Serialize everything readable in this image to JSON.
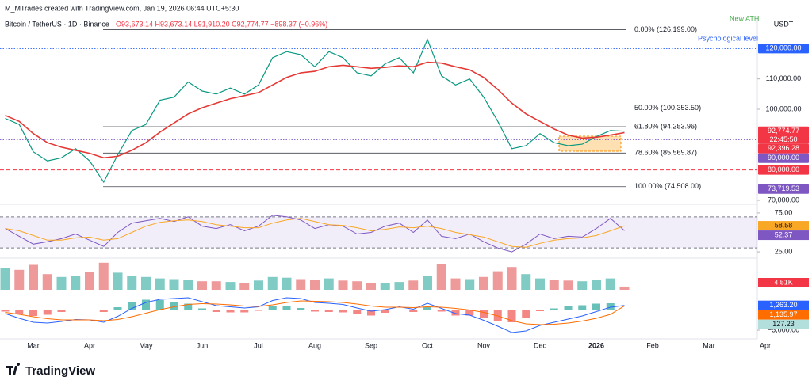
{
  "header": {
    "author_line": "M_MTrades created with TradingView.com, Jan 19, 2026 06:44 UTC+5:30",
    "symbol": "Bitcoin / TetherUS · 1D · Binance",
    "ohlc": "O93,673.14 H93,673.14 L91,910.20 C92,774.77 −898.37 (−0.96%)",
    "currency": "USDT"
  },
  "footer": {
    "brand": "TradingView"
  },
  "chart_data": {
    "type": "line",
    "categories": [
      null,
      null,
      "Mar",
      null,
      null,
      null,
      "Apr",
      null,
      null,
      null,
      "May",
      null,
      null,
      null,
      "Jun",
      null,
      null,
      null,
      "Jul",
      null,
      null,
      null,
      "Aug",
      null,
      null,
      null,
      "Sep",
      null,
      null,
      null,
      "Oct",
      null,
      null,
      null,
      "Nov",
      null,
      null,
      null,
      "Dec",
      null,
      null,
      null,
      "2026",
      null,
      null,
      null,
      "Feb",
      null,
      null,
      null,
      "Mar",
      null,
      null,
      null,
      "Apr"
    ],
    "series": [
      {
        "color": "#089981",
        "values": [
          97000,
          95000,
          86000,
          83000,
          84000,
          87000,
          83000,
          76000,
          85000,
          93000,
          95000,
          103000,
          104000,
          109000,
          106000,
          105000,
          107000,
          105000,
          108000,
          117000,
          119000,
          118000,
          114000,
          119000,
          117000,
          112000,
          111000,
          115000,
          117000,
          112000,
          123000,
          111000,
          108000,
          110000,
          104000,
          96000,
          87000,
          88000,
          92000,
          89000,
          88000,
          88500,
          91000,
          93000,
          92774.77,
          null,
          null,
          null,
          null,
          null,
          null,
          null,
          null,
          null,
          null
        ]
      },
      {
        "color": "#e53935",
        "values": [
          98000,
          96000,
          92000,
          89000,
          87500,
          86500,
          85500,
          84000,
          84500,
          86500,
          89000,
          92500,
          95500,
          98500,
          100500,
          102000,
          103500,
          104500,
          105500,
          108000,
          110500,
          112000,
          112500,
          114000,
          114500,
          114000,
          113500,
          113800,
          114300,
          114000,
          115500,
          115200,
          114000,
          113000,
          110500,
          106500,
          102000,
          98500,
          96000,
          93500,
          91500,
          90500,
          90800,
          91500,
          92300,
          null,
          null,
          null,
          null,
          null,
          null,
          null,
          null,
          null,
          null
        ]
      }
    ],
    "ylim": [
      70000,
      130000
    ],
    "yticks": [
      {
        "value": 70000,
        "label": "70,000.00"
      },
      {
        "value": 100000,
        "label": "100,000.00"
      },
      {
        "value": 110000,
        "label": "110,000.00"
      }
    ],
    "fib_levels": [
      {
        "value": 126199,
        "label": "0.00% (126,199.00)"
      },
      {
        "value": 100353.5,
        "label": "50.00% (100,353.50)"
      },
      {
        "value": 94253.96,
        "label": "61.80% (94,253.96)"
      },
      {
        "value": 85569.87,
        "label": "78.60% (85,569.87)"
      },
      {
        "value": 74508,
        "label": "100.00% (74,508.00)"
      }
    ],
    "annotations": [
      {
        "text": "New ATH",
        "color": "#4caf50"
      },
      {
        "text": "Psychological level",
        "color": "#2962ff"
      }
    ],
    "price_labels": [
      {
        "value": 120000,
        "label": "120,000.00",
        "color": "#2962ff",
        "line": "dotted"
      },
      {
        "value": 92774.77,
        "label": "92,774.77",
        "color": "#f23645",
        "countdown": "22:45:50"
      },
      {
        "value": 92396.28,
        "label": "92,396.28",
        "color": "#f23645"
      },
      {
        "value": 90000,
        "label": "90,000.00",
        "color": "#7e57c2",
        "line": "dotted"
      },
      {
        "value": 80000,
        "label": "80,000.00",
        "color": "#f23645",
        "line": "dashed"
      },
      {
        "value": 73719.53,
        "label": "73,719.53",
        "color": "#7e57c2"
      }
    ],
    "rsi": {
      "ylim": [
        20,
        80
      ],
      "yticks": [
        {
          "value": 75,
          "label": "75.00"
        },
        {
          "value": 25,
          "label": "25.00"
        }
      ],
      "band": [
        30,
        70
      ],
      "series": [
        {
          "color": "#7e57c2",
          "values": [
            55,
            45,
            35,
            38,
            42,
            48,
            40,
            32,
            50,
            62,
            65,
            68,
            64,
            70,
            58,
            55,
            60,
            52,
            58,
            72,
            70,
            66,
            55,
            60,
            58,
            48,
            50,
            58,
            62,
            50,
            66,
            45,
            42,
            48,
            38,
            30,
            25,
            35,
            48,
            42,
            45,
            44,
            55,
            68,
            52.37,
            null,
            null,
            null,
            null,
            null,
            null,
            null,
            null,
            null,
            null
          ],
          "last_label": "52.37"
        },
        {
          "color": "#f9a825",
          "values": [
            55,
            52,
            46,
            40,
            40,
            43,
            44,
            40,
            42,
            50,
            58,
            63,
            65,
            66,
            64,
            60,
            58,
            56,
            56,
            62,
            66,
            68,
            64,
            60,
            59,
            56,
            52,
            54,
            57,
            56,
            58,
            55,
            50,
            47,
            44,
            38,
            32,
            31,
            36,
            40,
            42,
            43,
            46,
            52,
            58.58,
            null,
            null,
            null,
            null,
            null,
            null,
            null,
            null,
            null,
            null
          ],
          "last_label": "58.58"
        }
      ]
    },
    "volume": {
      "ylim": [
        0,
        40000
      ],
      "values": [
        30000,
        28000,
        35000,
        22000,
        18000,
        20000,
        25000,
        38000,
        24000,
        20000,
        18000,
        16000,
        15000,
        14000,
        12000,
        12000,
        11000,
        10000,
        13000,
        18000,
        17000,
        15000,
        14000,
        16000,
        13000,
        12000,
        10000,
        9000,
        11000,
        13000,
        20000,
        36000,
        16000,
        15000,
        18000,
        26000,
        32000,
        22000,
        16000,
        14000,
        13000,
        12000,
        14000,
        16000,
        4510,
        null,
        null,
        null,
        null,
        null,
        null,
        null,
        null,
        null,
        null
      ],
      "last_label": "4.51K",
      "up_color": "#80cbc4",
      "down_color": "#ef9a9a"
    },
    "macd": {
      "ylim": [
        -6000,
        4000
      ],
      "yticks": [
        {
          "value": -5000,
          "label": "−5,000.00"
        }
      ],
      "series": [
        {
          "color": "#2962ff",
          "values": [
            -800,
            -2000,
            -3000,
            -3200,
            -2800,
            -2300,
            -2400,
            -3000,
            -1500,
            500,
            2000,
            2800,
            3000,
            3200,
            2200,
            1200,
            900,
            600,
            900,
            2500,
            3200,
            3000,
            2000,
            1800,
            1500,
            600,
            -200,
            200,
            900,
            300,
            1800,
            500,
            -800,
            -1200,
            -2500,
            -4000,
            -5600,
            -5200,
            -3800,
            -3000,
            -2200,
            -1400,
            -300,
            800,
            1263.2,
            null,
            null,
            null,
            null,
            null,
            null,
            null,
            null,
            null,
            null
          ],
          "last_label": "1,263.20"
        },
        {
          "color": "#ff6d00",
          "values": [
            -500,
            -1000,
            -1600,
            -2100,
            -2400,
            -2400,
            -2400,
            -2600,
            -2300,
            -1600,
            -700,
            200,
            900,
            1500,
            1700,
            1600,
            1400,
            1100,
            1000,
            1400,
            2000,
            2400,
            2300,
            2200,
            2000,
            1600,
            1100,
            800,
            800,
            700,
            900,
            800,
            500,
            100,
            -500,
            -1400,
            -2600,
            -3400,
            -3600,
            -3500,
            -3200,
            -2700,
            -2000,
            -1000,
            1135.97,
            null,
            null,
            null,
            null,
            null,
            null,
            null,
            null,
            null,
            null
          ],
          "last_label": "1,135.97"
        }
      ],
      "histogram": {
        "up_color": "#26a69a",
        "down_color": "#ef5350",
        "values": [
          -300,
          -1000,
          -1400,
          -1100,
          -400,
          100,
          0,
          -400,
          800,
          2100,
          2700,
          2600,
          2100,
          1700,
          500,
          -400,
          -500,
          -500,
          -100,
          1100,
          1200,
          600,
          -300,
          -400,
          -500,
          -1000,
          -1300,
          -600,
          100,
          -400,
          900,
          -300,
          -1300,
          -1300,
          -2000,
          -2600,
          -3000,
          -1800,
          -200,
          500,
          1000,
          1300,
          1700,
          1800,
          127.23,
          null,
          null,
          null,
          null,
          null,
          null,
          null,
          null,
          null,
          null
        ],
        "last_label": "127.23"
      }
    }
  }
}
